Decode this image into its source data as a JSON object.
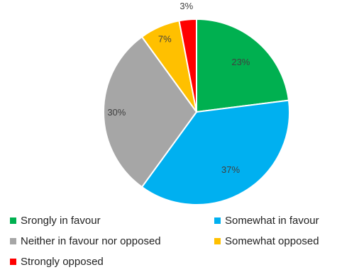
{
  "chart_data": {
    "type": "pie",
    "title": "",
    "slices": [
      {
        "name": "Srongly in favour",
        "value": 23,
        "label": "23%",
        "color": "#00b050"
      },
      {
        "name": "Somewhat in favour",
        "value": 37,
        "label": "37%",
        "color": "#00b0f0"
      },
      {
        "name": "Neither in favour nor opposed",
        "value": 30,
        "label": "30%",
        "color": "#a6a6a6"
      },
      {
        "name": "Somewhat opposed",
        "value": 7,
        "label": "7%",
        "color": "#ffc000"
      },
      {
        "name": "Strongly opposed",
        "value": 3,
        "label": "3%",
        "color": "#ff0000"
      }
    ],
    "start_angle": "top (12 o'clock)",
    "direction": "clockwise",
    "legend_position": "bottom"
  }
}
